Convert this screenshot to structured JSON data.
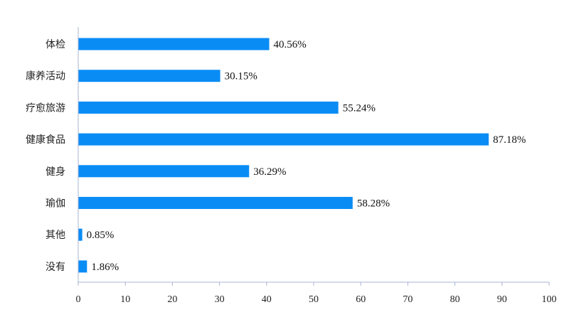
{
  "chart_data": {
    "type": "bar",
    "orientation": "horizontal",
    "categories": [
      "体检",
      "康养活动",
      "疗愈旅游",
      "健康食品",
      "健身",
      "瑜伽",
      "其他",
      "没有"
    ],
    "values": [
      40.56,
      30.15,
      55.24,
      87.18,
      36.29,
      58.28,
      0.85,
      1.86
    ],
    "value_labels": [
      "40.56%",
      "30.15%",
      "55.24%",
      "87.18%",
      "36.29%",
      "58.28%",
      "0.85%",
      "1.86%"
    ],
    "xlim": [
      0,
      100
    ],
    "x_ticks": [
      0,
      10,
      20,
      30,
      40,
      50,
      60,
      70,
      80,
      90,
      100
    ],
    "title": "",
    "xlabel": "",
    "ylabel": "",
    "grid": false,
    "legend": "none",
    "bar_color": "#0a8cf5",
    "axis_color": "#a8b3d6"
  }
}
